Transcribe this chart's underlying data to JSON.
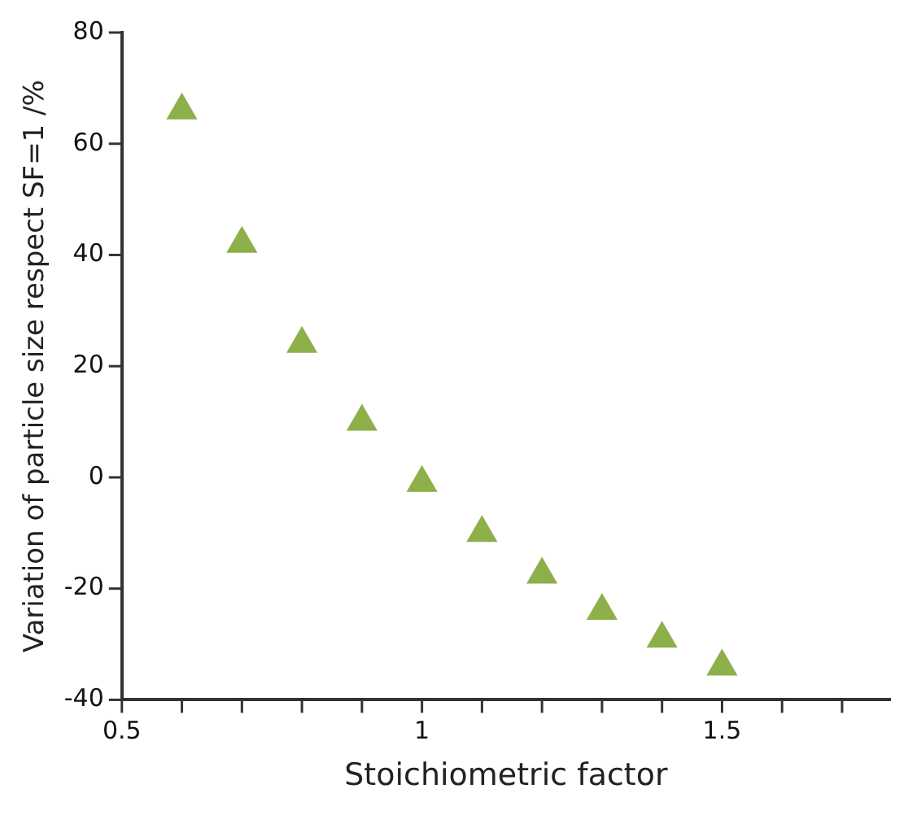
{
  "chart_data": {
    "type": "scatter",
    "xlabel": "Stoichiometric factor",
    "ylabel": "Variation of particle size respect SF=1 /%",
    "x": [
      0.6,
      0.7,
      0.8,
      0.9,
      1.0,
      1.1,
      1.2,
      1.3,
      1.4,
      1.5
    ],
    "series": [
      {
        "color": "#8db04a",
        "values": [
          66,
          42,
          24,
          10,
          -1,
          -10,
          -17.5,
          -24,
          -29,
          -34
        ]
      }
    ],
    "xlim": [
      0.5,
      1.78
    ],
    "ylim": [
      -40,
      80
    ],
    "xticks": [
      {
        "value": 0.5,
        "label": "0.5"
      },
      {
        "value": 0.6,
        "label": null
      },
      {
        "value": 0.7,
        "label": null
      },
      {
        "value": 0.8,
        "label": null
      },
      {
        "value": 0.9,
        "label": null
      },
      {
        "value": 1,
        "label": "1"
      },
      {
        "value": 1.1,
        "label": null
      },
      {
        "value": 1.2,
        "label": null
      },
      {
        "value": 1.3,
        "label": null
      },
      {
        "value": 1.4,
        "label": null
      },
      {
        "value": 1.5,
        "label": "1.5"
      },
      {
        "value": 1.6,
        "label": null
      },
      {
        "value": 1.7,
        "label": null
      }
    ],
    "yticks": [
      -40,
      -20,
      0,
      20,
      40,
      60,
      80
    ],
    "grid": false,
    "legend": false,
    "marker": "triangle"
  }
}
